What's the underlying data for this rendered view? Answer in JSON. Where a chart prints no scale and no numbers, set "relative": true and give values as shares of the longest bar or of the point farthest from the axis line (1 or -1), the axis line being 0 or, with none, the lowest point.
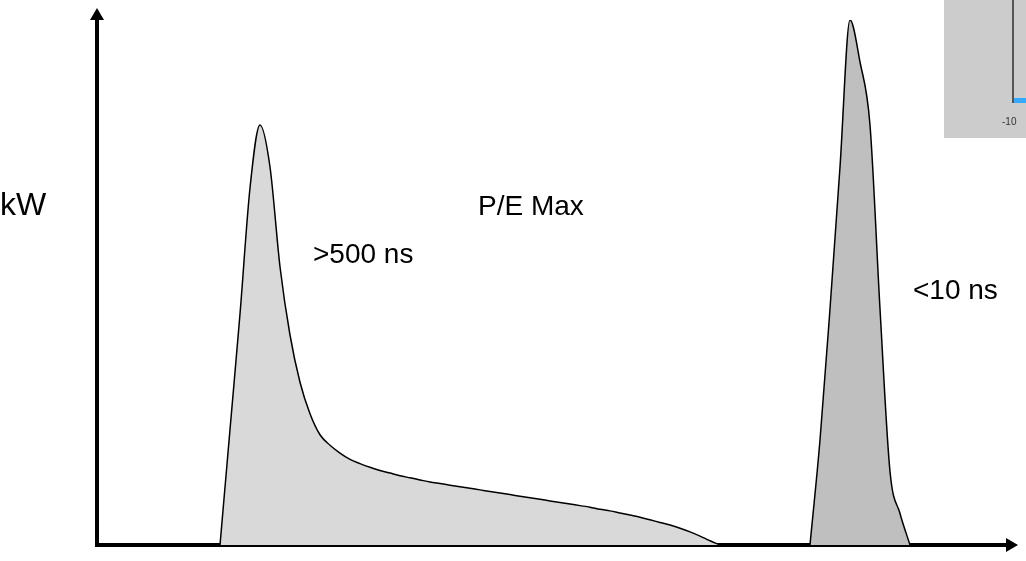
{
  "chart_data": {
    "type": "area",
    "relative": true,
    "ylabel": "kW",
    "annotations": [
      "P/E Max",
      ">500 ns",
      "<10 ns",
      "-10"
    ],
    "categories": [
      null,
      null,
      null,
      null,
      null,
      null,
      null,
      null,
      null,
      null,
      null,
      null,
      null,
      null,
      null,
      null,
      null,
      null,
      null,
      null,
      null,
      null,
      null,
      null,
      null,
      null,
      null,
      null,
      null,
      null,
      null,
      null,
      null,
      null,
      null,
      null,
      null,
      null,
      null,
      null,
      null,
      null,
      null,
      null,
      null,
      null,
      null,
      null,
      null,
      null,
      null,
      null,
      null,
      null,
      null,
      null,
      null,
      null,
      null,
      null,
      null,
      null,
      null,
      null,
      null,
      null,
      null,
      null,
      null,
      null,
      null,
      null,
      null,
      null,
      null,
      null,
      null,
      null,
      null,
      null,
      null,
      null,
      null,
      null,
      null,
      null,
      null,
      null,
      null,
      null,
      null,
      null
    ],
    "series": [
      {
        "color": "#d9d9d9",
        "values": [
          null,
          null,
          null,
          null,
          null,
          null,
          null,
          null,
          null,
          null,
          null,
          null,
          0,
          0.22,
          0.44,
          0.68,
          0.8,
          0.72,
          0.53,
          0.4,
          0.31,
          0.25,
          0.21,
          0.19,
          0.175,
          0.163,
          0.155,
          0.148,
          0.142,
          0.137,
          0.132,
          0.128,
          0.124,
          0.12,
          0.117,
          0.114,
          0.111,
          0.108,
          0.105,
          0.102,
          0.099,
          0.096,
          0.093,
          0.09,
          0.087,
          0.084,
          0.081,
          0.078,
          0.075,
          0.072,
          0.068,
          0.065,
          0.061,
          0.057,
          0.053,
          0.048,
          0.043,
          0.038,
          0.032,
          0.025,
          0.017,
          0.008,
          0,
          null,
          null,
          null,
          null,
          null,
          null,
          null,
          null,
          null,
          null,
          null,
          null,
          null,
          null,
          null,
          null,
          null,
          null,
          null,
          null,
          null,
          null,
          null,
          null,
          null,
          null,
          null,
          null,
          null
        ]
      },
      {
        "color": "#bfbfbf",
        "values": [
          null,
          null,
          null,
          null,
          null,
          null,
          null,
          null,
          null,
          null,
          null,
          null,
          null,
          null,
          null,
          null,
          null,
          null,
          null,
          null,
          null,
          null,
          null,
          null,
          null,
          null,
          null,
          null,
          null,
          null,
          null,
          null,
          null,
          null,
          null,
          null,
          null,
          null,
          null,
          null,
          null,
          null,
          null,
          null,
          null,
          null,
          null,
          null,
          null,
          null,
          null,
          null,
          null,
          null,
          null,
          null,
          null,
          null,
          null,
          null,
          null,
          null,
          null,
          null,
          null,
          null,
          null,
          null,
          null,
          null,
          null,
          0,
          0.2,
          0.45,
          0.72,
          1,
          0.92,
          0.8,
          0.45,
          0.14,
          0.06,
          0,
          null,
          null,
          null,
          null,
          null,
          null,
          null,
          null,
          null,
          null
        ]
      }
    ]
  }
}
